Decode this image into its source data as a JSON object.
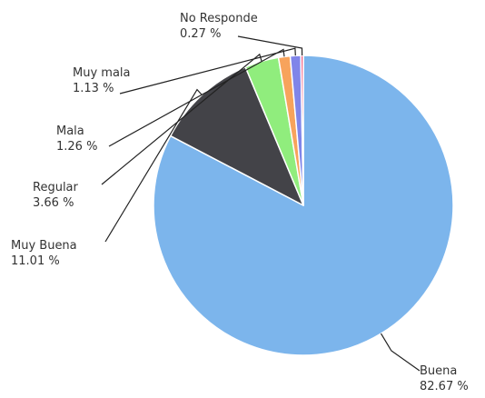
{
  "chart_data": {
    "type": "pie",
    "title": "",
    "slices": [
      {
        "label": "Buena",
        "value": 82.67,
        "display": "82.67 %",
        "color": "#7cb5ec"
      },
      {
        "label": "Muy Buena",
        "value": 11.01,
        "display": "11.01 %",
        "color": "#434348"
      },
      {
        "label": "Regular",
        "value": 3.66,
        "display": "3.66 %",
        "color": "#90ed7d"
      },
      {
        "label": "Mala",
        "value": 1.26,
        "display": "1.26 %",
        "color": "#f7a35c"
      },
      {
        "label": "Muy mala",
        "value": 1.13,
        "display": "1.13 %",
        "color": "#8085e9"
      },
      {
        "label": "No Responde",
        "value": 0.27,
        "display": "0.27 %",
        "color": "#f15c80"
      }
    ],
    "start_angle_deg": 0,
    "direction": "clockwise",
    "legend": "none",
    "data_labels": "outside-with-connectors"
  }
}
